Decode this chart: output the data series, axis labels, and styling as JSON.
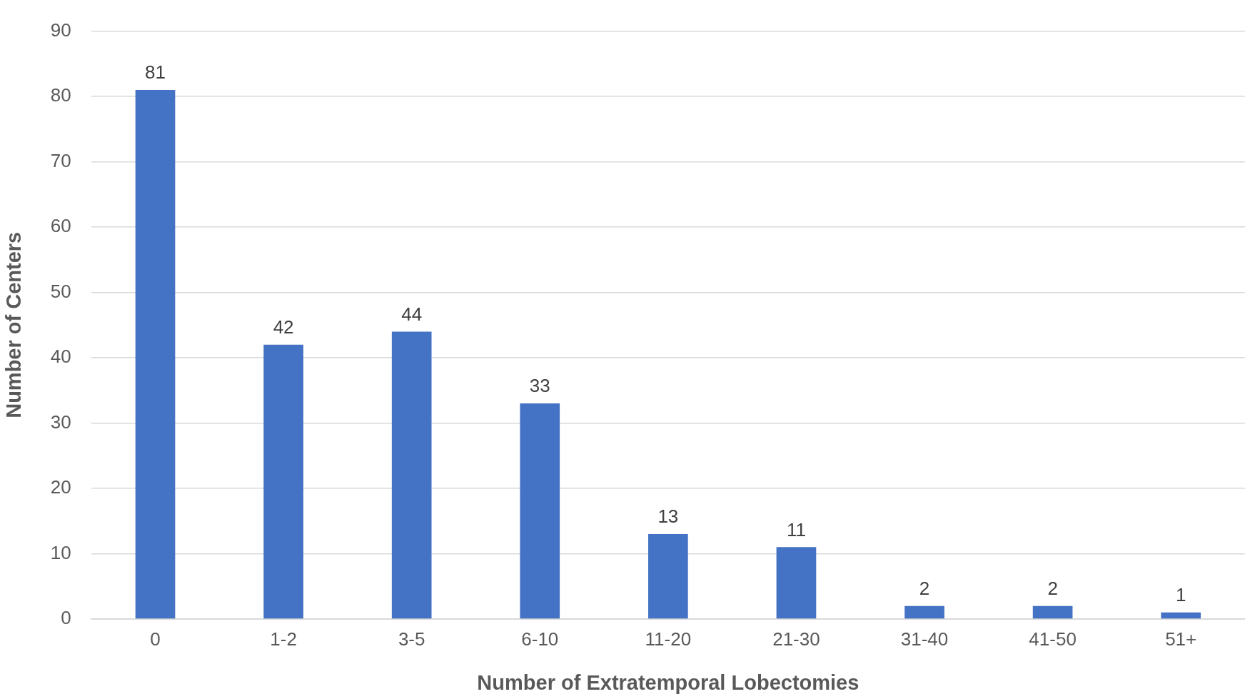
{
  "chart_data": {
    "type": "bar",
    "xlabel": "Number of Extratemporal Lobectomies",
    "ylabel": "Number of Centers",
    "categories": [
      "0",
      "1-2",
      "3-5",
      "6-10",
      "11-20",
      "21-30",
      "31-40",
      "41-50",
      "51+"
    ],
    "values": [
      81,
      42,
      44,
      33,
      13,
      11,
      2,
      2,
      1
    ],
    "color": "#4472c4",
    "ylim": [
      0,
      90
    ],
    "yticks": [
      0,
      10,
      20,
      30,
      40,
      50,
      60,
      70,
      80,
      90
    ],
    "grid": "y",
    "data_labels": true,
    "legend": false
  }
}
